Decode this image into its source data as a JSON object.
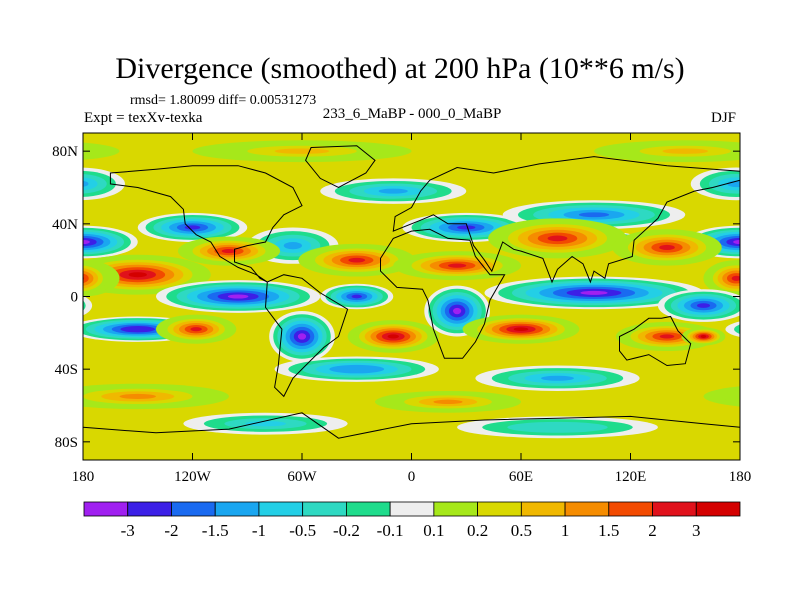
{
  "title": "Divergence (smoothed) at 200 hPa (10**6 m/s)",
  "stats_line": "rmsd= 1.80099 diff= 0.00531273",
  "left_label": "Expt = texXv-texka",
  "center_label": "233_6_MaBP - 000_0_MaBP",
  "right_label": "DJF",
  "chart_data": {
    "type": "heatmap",
    "title": "Divergence (smoothed) at 200 hPa (10**6 m/s)",
    "xlabel": "",
    "ylabel": "",
    "xlim": [
      -180,
      180
    ],
    "ylim": [
      -90,
      90
    ],
    "x_ticks": [
      {
        "value": -180,
        "label": "180"
      },
      {
        "value": -120,
        "label": "120W"
      },
      {
        "value": -60,
        "label": "60W"
      },
      {
        "value": 0,
        "label": "0"
      },
      {
        "value": 60,
        "label": "60E"
      },
      {
        "value": 120,
        "label": "120E"
      },
      {
        "value": 180,
        "label": "180"
      }
    ],
    "y_ticks": [
      {
        "value": 80,
        "label": "80N"
      },
      {
        "value": 40,
        "label": "40N"
      },
      {
        "value": 0,
        "label": "0"
      },
      {
        "value": -40,
        "label": "40S"
      },
      {
        "value": -80,
        "label": "80S"
      }
    ],
    "colorbar": {
      "levels": [
        "-3",
        "-2",
        "-1.5",
        "-1",
        "-0.5",
        "-0.2",
        "-0.1",
        "0.1",
        "0.2",
        "0.5",
        "1",
        "1.5",
        "2",
        "3"
      ],
      "colors": [
        "#a020f0",
        "#3c1fe6",
        "#1a6af0",
        "#1aa6f0",
        "#23cfe6",
        "#2ed9c2",
        "#1fdc8c",
        "#eeeeee",
        "#a6e81a",
        "#d9d800",
        "#f0b800",
        "#f58c00",
        "#f24a00",
        "#e0111b",
        "#d40000"
      ]
    },
    "features": [
      {
        "lon": -180,
        "lat": 30,
        "value": -3.2,
        "w": 30,
        "h": 9
      },
      {
        "lon": -120,
        "lat": 38,
        "value": -2.6,
        "w": 30,
        "h": 8
      },
      {
        "lon": -65,
        "lat": 28,
        "value": -1.2,
        "w": 25,
        "h": 10
      },
      {
        "lon": 30,
        "lat": 38,
        "value": -2.2,
        "w": 35,
        "h": 8
      },
      {
        "lon": 100,
        "lat": 45,
        "value": -1.8,
        "w": 50,
        "h": 8
      },
      {
        "lon": 115,
        "lat": 30,
        "value": -3.3,
        "w": 10,
        "h": 5
      },
      {
        "lon": 178,
        "lat": 62,
        "value": -1.4,
        "w": 25,
        "h": 9
      },
      {
        "lon": -150,
        "lat": 12,
        "value": 3.4,
        "w": 40,
        "h": 11
      },
      {
        "lon": -180,
        "lat": 10,
        "value": 3.0,
        "w": 20,
        "h": 10
      },
      {
        "lon": -100,
        "lat": 25,
        "value": 2.2,
        "w": 28,
        "h": 8
      },
      {
        "lon": -30,
        "lat": 20,
        "value": 2.6,
        "w": 32,
        "h": 9
      },
      {
        "lon": 25,
        "lat": 17,
        "value": 2.2,
        "w": 35,
        "h": 8
      },
      {
        "lon": 80,
        "lat": 32,
        "value": 2.5,
        "w": 38,
        "h": 11
      },
      {
        "lon": 140,
        "lat": 27,
        "value": 2.9,
        "w": 30,
        "h": 10
      },
      {
        "lon": 178,
        "lat": 10,
        "value": 2.8,
        "w": 18,
        "h": 10
      },
      {
        "lon": -95,
        "lat": 0,
        "value": -3.6,
        "w": 45,
        "h": 9
      },
      {
        "lon": -30,
        "lat": 0,
        "value": -2.5,
        "w": 20,
        "h": 7
      },
      {
        "lon": 25,
        "lat": -8,
        "value": -3.4,
        "w": 18,
        "h": 14
      },
      {
        "lon": 100,
        "lat": 2,
        "value": -3.7,
        "w": 60,
        "h": 9
      },
      {
        "lon": 160,
        "lat": -5,
        "value": -2.4,
        "w": 25,
        "h": 9
      },
      {
        "lon": -60,
        "lat": -22,
        "value": -3.5,
        "w": 18,
        "h": 14
      },
      {
        "lon": -150,
        "lat": -18,
        "value": -3.0,
        "w": 38,
        "h": 7
      },
      {
        "lon": -118,
        "lat": -18,
        "value": 2.6,
        "w": 22,
        "h": 8
      },
      {
        "lon": -10,
        "lat": -22,
        "value": 3.2,
        "w": 25,
        "h": 9
      },
      {
        "lon": 60,
        "lat": -18,
        "value": 3.0,
        "w": 32,
        "h": 8
      },
      {
        "lon": 140,
        "lat": -22,
        "value": 2.7,
        "w": 28,
        "h": 8
      },
      {
        "lon": 160,
        "lat": -22,
        "value": 3.1,
        "w": 12,
        "h": 5
      },
      {
        "lon": -30,
        "lat": -40,
        "value": -1.5,
        "w": 45,
        "h": 7
      },
      {
        "lon": 80,
        "lat": -45,
        "value": -1.2,
        "w": 45,
        "h": 7
      },
      {
        "lon": -150,
        "lat": -55,
        "value": 1.1,
        "w": 50,
        "h": 7
      },
      {
        "lon": 20,
        "lat": -58,
        "value": 1.0,
        "w": 40,
        "h": 6
      },
      {
        "lon": -80,
        "lat": -70,
        "value": -0.7,
        "w": 45,
        "h": 6
      },
      {
        "lon": 80,
        "lat": -72,
        "value": -0.5,
        "w": 55,
        "h": 6
      },
      {
        "lon": -10,
        "lat": 58,
        "value": -1.3,
        "w": 40,
        "h": 7
      },
      {
        "lon": 150,
        "lat": 80,
        "value": 0.9,
        "w": 50,
        "h": 6
      },
      {
        "lon": -60,
        "lat": 80,
        "value": 0.8,
        "w": 60,
        "h": 6
      }
    ]
  }
}
